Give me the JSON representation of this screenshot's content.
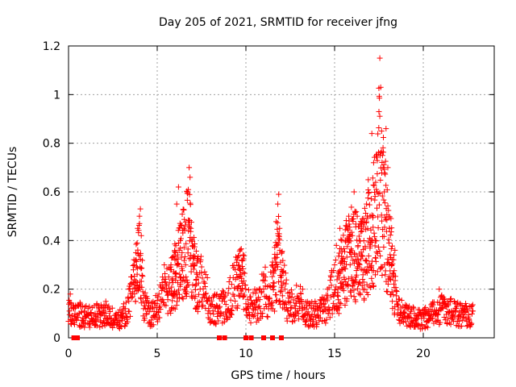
{
  "chart_data": {
    "type": "scatter",
    "title": "Day 205 of 2021, SRMTID for receiver jfng",
    "xlabel": "GPS time / hours",
    "ylabel": "SRMTID / TECUs",
    "xlim": [
      0,
      24
    ],
    "ylim": [
      0,
      1.2
    ],
    "x_ticks": [
      0,
      5,
      10,
      15,
      20
    ],
    "x_tick_labels": [
      "0",
      "5",
      "10",
      "15",
      "20"
    ],
    "y_ticks": [
      0,
      0.2,
      0.4,
      0.6,
      0.8,
      1.0,
      1.2
    ],
    "y_tick_labels": [
      "0",
      "0.2",
      "0.4",
      "0.6",
      "0.8",
      "1",
      "1.2"
    ],
    "grid": true,
    "marker": "+",
    "marker_color": "#ff0000",
    "zero_markers_x": [
      0.3,
      0.5,
      8.5,
      8.8,
      10.0,
      10.3,
      11.0,
      11.5,
      12.0
    ],
    "profile_hours": [
      0,
      0.5,
      1,
      1.5,
      2,
      2.5,
      3,
      3.3,
      3.6,
      3.8,
      4.0,
      4.2,
      4.5,
      5.0,
      5.5,
      6.0,
      6.3,
      6.6,
      6.8,
      7.0,
      7.3,
      7.7,
      8.0,
      8.5,
      9.0,
      9.5,
      9.8,
      10.0,
      10.3,
      10.7,
      11.0,
      11.3,
      11.6,
      11.8,
      12.0,
      12.3,
      12.7,
      13.0,
      13.5,
      14.0,
      14.5,
      15.0,
      15.3,
      15.6,
      15.9,
      16.2,
      16.5,
      16.8,
      17.0,
      17.3,
      17.5,
      17.7,
      17.9,
      18.1,
      18.3,
      18.6,
      18.9,
      19.2,
      19.6,
      20.0,
      20.5,
      21.0,
      21.5,
      22.0,
      22.5,
      22.8
    ],
    "profile_values": [
      0.11,
      0.1,
      0.09,
      0.09,
      0.1,
      0.08,
      0.08,
      0.12,
      0.2,
      0.3,
      0.45,
      0.15,
      0.1,
      0.12,
      0.2,
      0.3,
      0.4,
      0.45,
      0.5,
      0.35,
      0.25,
      0.2,
      0.12,
      0.12,
      0.15,
      0.25,
      0.3,
      0.2,
      0.12,
      0.14,
      0.2,
      0.18,
      0.3,
      0.45,
      0.3,
      0.15,
      0.14,
      0.15,
      0.1,
      0.1,
      0.12,
      0.22,
      0.3,
      0.38,
      0.42,
      0.4,
      0.38,
      0.45,
      0.55,
      0.6,
      0.8,
      0.7,
      0.55,
      0.45,
      0.3,
      0.12,
      0.1,
      0.09,
      0.08,
      0.08,
      0.1,
      0.12,
      0.11,
      0.1,
      0.1,
      0.1
    ],
    "points": [
      [
        0.05,
        0.11
      ],
      [
        0.1,
        0.18
      ],
      [
        0.15,
        0.14
      ],
      [
        0.2,
        0.09
      ],
      [
        0.3,
        0.12
      ],
      [
        0.4,
        0.08
      ],
      [
        0.6,
        0.1
      ],
      [
        0.7,
        0.13
      ],
      [
        0.8,
        0.07
      ],
      [
        0.9,
        0.11
      ],
      [
        1.0,
        0.09
      ],
      [
        1.1,
        0.12
      ],
      [
        1.3,
        0.08
      ],
      [
        1.5,
        0.1
      ],
      [
        1.6,
        0.14
      ],
      [
        1.8,
        0.07
      ],
      [
        2.0,
        0.11
      ],
      [
        2.1,
        0.15
      ],
      [
        2.3,
        0.09
      ],
      [
        2.5,
        0.06
      ],
      [
        2.7,
        0.08
      ],
      [
        2.9,
        0.05
      ],
      [
        3.0,
        0.09
      ],
      [
        3.2,
        0.12
      ],
      [
        3.4,
        0.15
      ],
      [
        3.5,
        0.22
      ],
      [
        3.6,
        0.18
      ],
      [
        3.7,
        0.3
      ],
      [
        3.8,
        0.35
      ],
      [
        3.9,
        0.45
      ],
      [
        4.0,
        0.5
      ],
      [
        4.05,
        0.53
      ],
      [
        4.1,
        0.42
      ],
      [
        4.2,
        0.15
      ],
      [
        4.3,
        0.08
      ],
      [
        4.4,
        0.1
      ],
      [
        4.5,
        0.06
      ],
      [
        4.6,
        0.12
      ],
      [
        4.8,
        0.09
      ],
      [
        5.0,
        0.14
      ],
      [
        5.1,
        0.18
      ],
      [
        5.3,
        0.25
      ],
      [
        5.4,
        0.3
      ],
      [
        5.5,
        0.22
      ],
      [
        5.6,
        0.1
      ],
      [
        5.8,
        0.28
      ],
      [
        6.0,
        0.32
      ],
      [
        6.1,
        0.55
      ],
      [
        6.2,
        0.62
      ],
      [
        6.3,
        0.4
      ],
      [
        6.4,
        0.35
      ],
      [
        6.5,
        0.45
      ],
      [
        6.6,
        0.3
      ],
      [
        6.7,
        0.6
      ],
      [
        6.8,
        0.7
      ],
      [
        6.85,
        0.66
      ],
      [
        6.9,
        0.45
      ],
      [
        7.0,
        0.38
      ],
      [
        7.1,
        0.3
      ],
      [
        7.2,
        0.22
      ],
      [
        7.3,
        0.25
      ],
      [
        7.5,
        0.15
      ],
      [
        7.7,
        0.18
      ],
      [
        7.9,
        0.12
      ],
      [
        8.0,
        0.1
      ],
      [
        8.2,
        0.06
      ],
      [
        8.4,
        0.13
      ],
      [
        8.6,
        0.1
      ],
      [
        8.8,
        0.15
      ],
      [
        9.0,
        0.12
      ],
      [
        9.2,
        0.22
      ],
      [
        9.4,
        0.28
      ],
      [
        9.5,
        0.32
      ],
      [
        9.6,
        0.25
      ],
      [
        9.8,
        0.2
      ],
      [
        10.0,
        0.14
      ],
      [
        10.2,
        0.08
      ],
      [
        10.4,
        0.12
      ],
      [
        10.5,
        0.2
      ],
      [
        10.6,
        0.15
      ],
      [
        10.8,
        0.12
      ],
      [
        11.0,
        0.2
      ],
      [
        11.1,
        0.25
      ],
      [
        11.3,
        0.16
      ],
      [
        11.5,
        0.3
      ],
      [
        11.7,
        0.38
      ],
      [
        11.8,
        0.55
      ],
      [
        11.85,
        0.59
      ],
      [
        11.9,
        0.45
      ],
      [
        12.0,
        0.28
      ],
      [
        12.2,
        0.2
      ],
      [
        12.4,
        0.15
      ],
      [
        12.6,
        0.18
      ],
      [
        12.8,
        0.12
      ],
      [
        13.0,
        0.15
      ],
      [
        13.2,
        0.2
      ],
      [
        13.4,
        0.1
      ],
      [
        13.6,
        0.08
      ],
      [
        13.8,
        0.12
      ],
      [
        14.0,
        0.09
      ],
      [
        14.2,
        0.11
      ],
      [
        14.4,
        0.14
      ],
      [
        14.6,
        0.2
      ],
      [
        14.8,
        0.25
      ],
      [
        15.0,
        0.3
      ],
      [
        15.1,
        0.38
      ],
      [
        15.3,
        0.45
      ],
      [
        15.4,
        0.28
      ],
      [
        15.6,
        0.4
      ],
      [
        15.8,
        0.5
      ],
      [
        15.9,
        0.35
      ],
      [
        16.0,
        0.42
      ],
      [
        16.1,
        0.6
      ],
      [
        16.2,
        0.25
      ],
      [
        16.4,
        0.3
      ],
      [
        16.5,
        0.45
      ],
      [
        16.7,
        0.2
      ],
      [
        16.8,
        0.55
      ],
      [
        16.9,
        0.65
      ],
      [
        17.0,
        0.5
      ],
      [
        17.1,
        0.84
      ],
      [
        17.2,
        0.72
      ],
      [
        17.3,
        0.4
      ],
      [
        17.4,
        0.6
      ],
      [
        17.5,
        0.93
      ],
      [
        17.55,
        1.15
      ],
      [
        17.6,
        1.03
      ],
      [
        17.65,
        0.85
      ],
      [
        17.7,
        0.75
      ],
      [
        17.8,
        0.6
      ],
      [
        17.9,
        0.86
      ],
      [
        18.0,
        0.7
      ],
      [
        18.1,
        0.45
      ],
      [
        18.2,
        0.3
      ],
      [
        18.3,
        0.25
      ],
      [
        18.4,
        0.36
      ],
      [
        18.5,
        0.15
      ],
      [
        18.7,
        0.1
      ],
      [
        18.9,
        0.08
      ],
      [
        19.1,
        0.12
      ],
      [
        19.3,
        0.06
      ],
      [
        19.5,
        0.1
      ],
      [
        19.7,
        0.05
      ],
      [
        19.9,
        0.08
      ],
      [
        20.1,
        0.04
      ],
      [
        20.3,
        0.09
      ],
      [
        20.5,
        0.14
      ],
      [
        20.7,
        0.1
      ],
      [
        20.9,
        0.2
      ],
      [
        21.0,
        0.12
      ],
      [
        21.2,
        0.16
      ],
      [
        21.4,
        0.08
      ],
      [
        21.6,
        0.11
      ],
      [
        21.8,
        0.14
      ],
      [
        22.0,
        0.09
      ],
      [
        22.2,
        0.12
      ],
      [
        22.4,
        0.08
      ],
      [
        22.6,
        0.13
      ],
      [
        22.8,
        0.11
      ]
    ]
  }
}
